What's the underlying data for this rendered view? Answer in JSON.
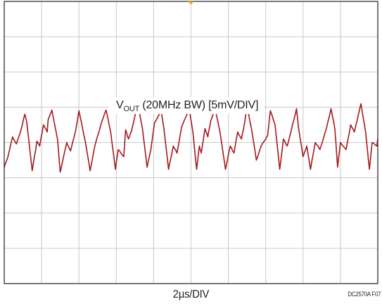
{
  "chart_data": {
    "type": "line",
    "title": "",
    "xlabel": "2µs/DIV",
    "ylabel": "",
    "annotations": {
      "trace_label": {
        "signal": "V",
        "subscript": "OUT",
        "details": "(20MHz BW) [5mV/DIV]"
      },
      "figure_id": "DC2570A F07"
    },
    "divisions": {
      "x": 10,
      "y": 8
    },
    "time_per_div_us": 2,
    "volts_per_div_mV": 5,
    "xlim": [
      0,
      20
    ],
    "ylim_mV": [
      -20,
      20
    ],
    "grid": true,
    "trigger_marker": "top-center",
    "series": [
      {
        "color": "#a3191f",
        "ripple_period_us": 1.46,
        "x_us": [
          0.0,
          0.2,
          0.45,
          0.65,
          0.9,
          1.1,
          1.2,
          1.35,
          1.5,
          1.75,
          1.9,
          2.1,
          2.3,
          2.35,
          2.55,
          2.85,
          3.0,
          3.35,
          3.55,
          3.85,
          4.0,
          4.35,
          4.6,
          4.85,
          5.2,
          5.45,
          5.7,
          5.95,
          6.1,
          6.4,
          6.5,
          6.65,
          6.8,
          7.15,
          7.4,
          7.65,
          7.85,
          8.05,
          8.4,
          8.55,
          8.8,
          9.05,
          9.25,
          9.5,
          9.9,
          10.1,
          10.3,
          10.45,
          10.55,
          10.75,
          10.9,
          11.05,
          11.3,
          11.55,
          11.85,
          12.1,
          12.3,
          12.5,
          12.7,
          12.85,
          13.0,
          13.25,
          13.5,
          13.75,
          14.1,
          14.25,
          14.5,
          14.75,
          14.95,
          15.15,
          15.35,
          15.65,
          15.75,
          16.0,
          16.2,
          16.4,
          16.65,
          16.9,
          17.25,
          17.5,
          17.7,
          17.85,
          18.0,
          18.3,
          18.55,
          18.75,
          18.95,
          19.1,
          19.35,
          19.55,
          19.7,
          19.95,
          20.0
        ],
        "y_mV": [
          -3.5,
          -2.0,
          0.8,
          -0.2,
          1.8,
          4.0,
          3.0,
          -0.5,
          -4.0,
          0.2,
          -0.5,
          2.5,
          1.5,
          3.2,
          4.6,
          0.5,
          -4.2,
          0.0,
          -1.2,
          2.0,
          4.5,
          0.0,
          -4.0,
          -0.5,
          2.8,
          4.6,
          1.5,
          -3.8,
          -1.0,
          -2.0,
          1.8,
          0.5,
          1.5,
          5.5,
          2.0,
          -3.5,
          -1.0,
          2.8,
          4.5,
          2.0,
          -3.8,
          -0.5,
          -1.5,
          2.2,
          4.8,
          1.5,
          -3.8,
          -0.5,
          -1.5,
          2.0,
          0.8,
          3.0,
          4.8,
          1.5,
          -3.8,
          -0.5,
          -1.5,
          1.5,
          0.5,
          2.5,
          5.0,
          1.8,
          -2.5,
          -0.5,
          1.0,
          4.5,
          2.5,
          -3.8,
          0.5,
          -0.5,
          1.5,
          4.8,
          2.2,
          -2.0,
          -0.5,
          -3.8,
          0.0,
          -1.0,
          2.0,
          4.8,
          2.0,
          -3.5,
          0.0,
          -1.0,
          2.5,
          1.5,
          3.8,
          5.5,
          1.5,
          -3.8,
          0.0,
          -0.5,
          0.5
        ]
      }
    ]
  }
}
